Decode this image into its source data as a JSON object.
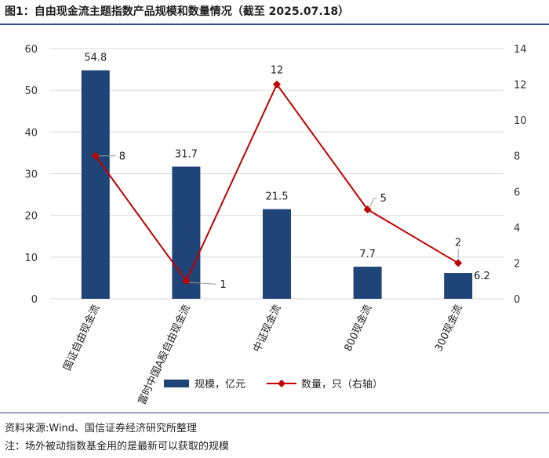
{
  "title": "图1：自由现金流主题指数产品规模和数量情况（截至 2025.07.18）",
  "source": "资料来源:Wind、国信证券经济研究所整理",
  "note": "注：场外被动指数基金用的是最新可以获取的规模",
  "colors": {
    "bar": "#1f4477",
    "line": "#c00000",
    "grid": "#d9d9d9",
    "axis_text": "#333333",
    "rule": "#2d4f86"
  },
  "chart_data": {
    "type": "bar",
    "categories": [
      "国证自由现金流",
      "富时中国A股自由现金流",
      "中证现金流",
      "800现金流",
      "300现金流"
    ],
    "series": [
      {
        "name": "规模，亿元",
        "type": "bar",
        "axis": "left",
        "values": [
          54.8,
          31.7,
          21.5,
          7.7,
          6.2
        ],
        "labels": [
          "54.8",
          "31.7",
          "21.5",
          "7.7",
          "6.2"
        ]
      },
      {
        "name": "数量，只（右轴）",
        "type": "line",
        "axis": "right",
        "values": [
          8,
          1,
          12,
          5,
          2
        ],
        "labels": [
          "8",
          "1",
          "12",
          "5",
          "2"
        ]
      }
    ],
    "y_left": {
      "min": 0,
      "max": 60,
      "ticks": [
        0,
        10,
        20,
        30,
        40,
        50,
        60
      ]
    },
    "y_right": {
      "min": 0,
      "max": 14,
      "ticks": [
        0,
        2,
        4,
        6,
        8,
        10,
        12,
        14
      ]
    },
    "legend_position": "bottom-center",
    "grid": true
  }
}
